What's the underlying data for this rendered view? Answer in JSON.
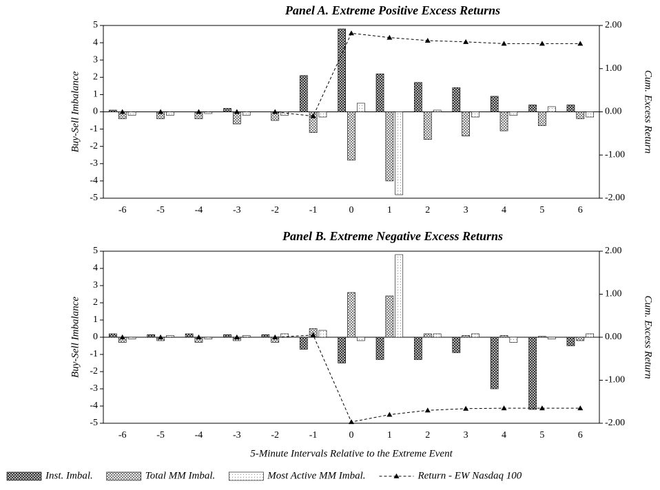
{
  "chart_data": [
    {
      "type": "bar",
      "title": "Panel A. Extreme Positive Excess Returns",
      "ylabel": "Buy-Sell Imbalance",
      "y2label": "Cum. Excess Return",
      "categories": [
        -6,
        -5,
        -4,
        -3,
        -2,
        -1,
        0,
        1,
        2,
        3,
        4,
        5,
        6
      ],
      "ylim": [
        -5,
        5
      ],
      "yticks": [
        -5,
        -4,
        -3,
        -2,
        -1,
        0,
        1,
        2,
        3,
        4,
        5
      ],
      "y2lim": [
        -2,
        2
      ],
      "y2ticks": [
        {
          "value": -2,
          "label": "-2.00"
        },
        {
          "value": -1,
          "label": "-1.00"
        },
        {
          "value": 0,
          "label": "0.00"
        },
        {
          "value": 1,
          "label": "1.00"
        },
        {
          "value": 2,
          "label": "2.00"
        }
      ],
      "series": [
        {
          "name": "Inst. Imbal.",
          "color": "#333333",
          "values": [
            0.1,
            0,
            0,
            0.2,
            0,
            2.1,
            4.8,
            2.2,
            1.7,
            1.4,
            0.9,
            0.4,
            0.4
          ]
        },
        {
          "name": "Total MM Imbal.",
          "color": "#555555",
          "values": [
            -0.4,
            -0.4,
            -0.4,
            -0.7,
            -0.5,
            -1.2,
            -2.8,
            -4.0,
            -1.6,
            -1.4,
            -1.1,
            -0.8,
            -0.4
          ]
        },
        {
          "name": "Most Active MM Imbal.",
          "color": "#888888",
          "values": [
            -0.2,
            -0.2,
            -0.1,
            -0.2,
            -0.2,
            -0.3,
            0.5,
            -4.8,
            0.1,
            -0.3,
            -0.2,
            0.3,
            -0.3
          ]
        },
        {
          "name": "Return - EW Nasdaq 100",
          "color": "#000000",
          "axis": "y2",
          "values": [
            0,
            0,
            0,
            0,
            0,
            -0.1,
            1.82,
            1.72,
            1.65,
            1.62,
            1.58,
            1.58,
            1.58
          ]
        }
      ]
    },
    {
      "type": "bar",
      "title": "Panel B. Extreme Negative Excess Returns",
      "ylabel": "Buy-Sell Imbalance",
      "y2label": "Cum. Excess Return",
      "xlabel": "5-Minute Intervals Relative to the Extreme Event",
      "categories": [
        -6,
        -5,
        -4,
        -3,
        -2,
        -1,
        0,
        1,
        2,
        3,
        4,
        5,
        6
      ],
      "ylim": [
        -5,
        5
      ],
      "yticks": [
        -5,
        -4,
        -3,
        -2,
        -1,
        0,
        1,
        2,
        3,
        4,
        5
      ],
      "y2lim": [
        -2,
        2
      ],
      "y2ticks": [
        {
          "value": -2,
          "label": "-2.00"
        },
        {
          "value": -1,
          "label": "-1.00"
        },
        {
          "value": 0,
          "label": "0.00"
        },
        {
          "value": 1,
          "label": "1.00"
        },
        {
          "value": 2,
          "label": "2.00"
        }
      ],
      "series": [
        {
          "color": "#333333",
          "values": [
            0.2,
            0.15,
            0.2,
            0.15,
            0.15,
            -0.7,
            -1.5,
            -1.3,
            -1.3,
            -0.9,
            -3.0,
            -4.2,
            -0.5
          ]
        },
        {
          "color": "#555555",
          "values": [
            -0.3,
            -0.2,
            -0.3,
            -0.2,
            -0.3,
            0.5,
            2.6,
            2.4,
            0.2,
            0.1,
            0.1,
            0.05,
            -0.2
          ]
        },
        {
          "color": "#888888",
          "values": [
            -0.1,
            0.1,
            -0.1,
            0.1,
            0.2,
            0.4,
            -0.2,
            4.8,
            0.2,
            0.2,
            -0.3,
            -0.1,
            0.2
          ]
        },
        {
          "color": "#000000",
          "axis": "y2",
          "values": [
            0,
            0,
            0,
            0,
            0,
            0.05,
            -1.97,
            -1.8,
            -1.7,
            -1.66,
            -1.65,
            -1.65,
            -1.65
          ]
        }
      ]
    }
  ]
}
